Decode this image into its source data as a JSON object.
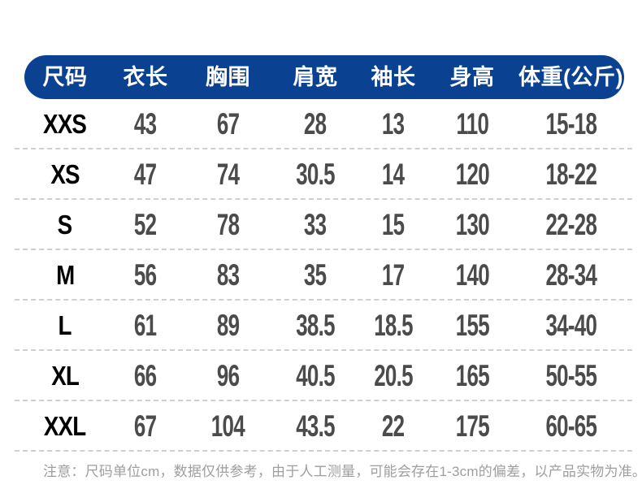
{
  "chart_data": {
    "type": "table",
    "unit": "cm",
    "columns": [
      "尺码",
      "衣长",
      "胸围",
      "肩宽",
      "袖长",
      "身高",
      "体重(公斤)"
    ],
    "rows": [
      {
        "size": "XXS",
        "values": [
          "43",
          "67",
          "28",
          "13",
          "110",
          "15-18"
        ]
      },
      {
        "size": "XS",
        "values": [
          "47",
          "74",
          "30.5",
          "14",
          "120",
          "18-22"
        ]
      },
      {
        "size": "S",
        "values": [
          "52",
          "78",
          "33",
          "15",
          "130",
          "22-28"
        ]
      },
      {
        "size": "M",
        "values": [
          "56",
          "83",
          "35",
          "17",
          "140",
          "28-34"
        ]
      },
      {
        "size": "L",
        "values": [
          "61",
          "89",
          "38.5",
          "18.5",
          "155",
          "34-40"
        ]
      },
      {
        "size": "XL",
        "values": [
          "66",
          "96",
          "40.5",
          "20.5",
          "165",
          "50-55"
        ]
      },
      {
        "size": "XXL",
        "values": [
          "67",
          "104",
          "43.5",
          "22",
          "175",
          "60-65"
        ]
      }
    ]
  },
  "note": "注意：尺码单位cm，数据仅供参考，由于人工测量，可能会存在1-3cm的偏差，以产品实物为准。",
  "colors": {
    "header_bg": "#0b4191",
    "header_text": "#ffffff",
    "size_text": "#000000",
    "value_text": "#4b4b4b",
    "divider": "#cfcfcf",
    "note_text": "#9e9e9e"
  }
}
